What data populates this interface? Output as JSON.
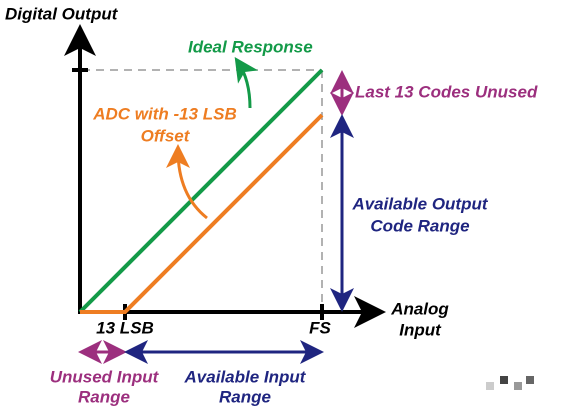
{
  "title": "Digital Output",
  "ideal_response": "Ideal Response",
  "adc_offset": [
    "ADC with -13 LSB",
    "Offset"
  ],
  "last_codes_unused": "Last 13 Codes Unused",
  "available_output": [
    "Available Output",
    "Code Range"
  ],
  "x_axis_label": [
    "Analog",
    "Input"
  ],
  "tick_13lsb": "13 LSB",
  "tick_fs": "FS",
  "unused_input": [
    "Unused Input",
    "Range"
  ],
  "available_input": [
    "Available Input",
    "Range"
  ]
}
